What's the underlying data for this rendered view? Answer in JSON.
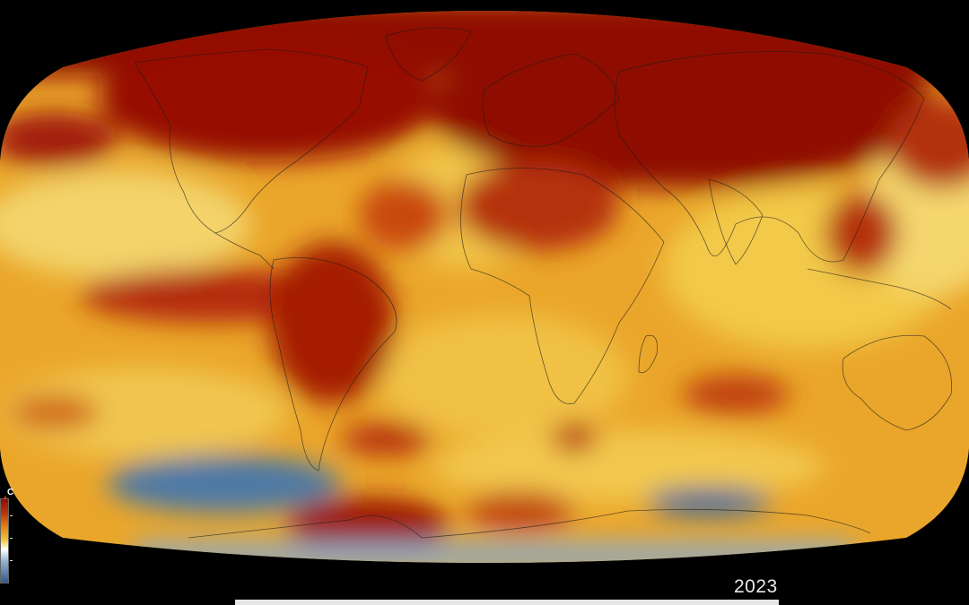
{
  "map": {
    "projection": "robinson",
    "variable": "temperature-anomaly",
    "colors": {
      "background": "#000000",
      "hot_extreme": "#8f0d04",
      "hot": "#c1390b",
      "warm": "#e3881d",
      "mild": "#f1c232",
      "neutral": "#d9d7c3",
      "cool": "#5e88b0",
      "cold": "#2f5a8a",
      "land_outline": "#1a1a1a"
    }
  },
  "legend": {
    "unit_label": "C",
    "scale_arrow_icon": "up-triangle-icon",
    "gradient": [
      "#8f0d04",
      "#e3881d",
      "#f1c232",
      "#ffffff",
      "#5e88b0",
      "#2f5a8a"
    ]
  },
  "timeline": {
    "year": "2023",
    "progress": 1.0
  }
}
